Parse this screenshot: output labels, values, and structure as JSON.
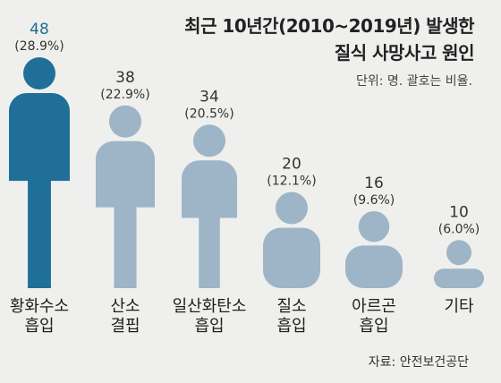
{
  "title_line1": "최근 10년간(2010~2019년) 발생한",
  "title_line2": "질식 사망사고 원인",
  "unit_note": "단위: 명. 괄호는 비율.",
  "source": "자료: 안전보건공단",
  "colors": {
    "highlight": "#1f6f98",
    "normal": "#9db5c6",
    "background": "#efefed"
  },
  "chart_data": {
    "type": "bar",
    "style": "pictogram person silhouettes",
    "categories": [
      [
        "황화수소",
        "흡입"
      ],
      [
        "산소",
        "결핍"
      ],
      [
        "일산화탄소",
        "흡입"
      ],
      [
        "질소",
        "흡입"
      ],
      [
        "아르곤",
        "흡입"
      ],
      [
        "기타"
      ]
    ],
    "values": [
      48,
      38,
      34,
      20,
      16,
      10
    ],
    "labels": [
      "48",
      "38",
      "34",
      "20",
      "16",
      "10"
    ],
    "percent_labels": [
      "(28.9%)",
      "(22.9%)",
      "(20.5%)",
      "(12.1%)",
      "(9.6%)",
      "(6.0%)"
    ],
    "highlight_index": 0,
    "ylim": [
      0,
      48
    ]
  }
}
